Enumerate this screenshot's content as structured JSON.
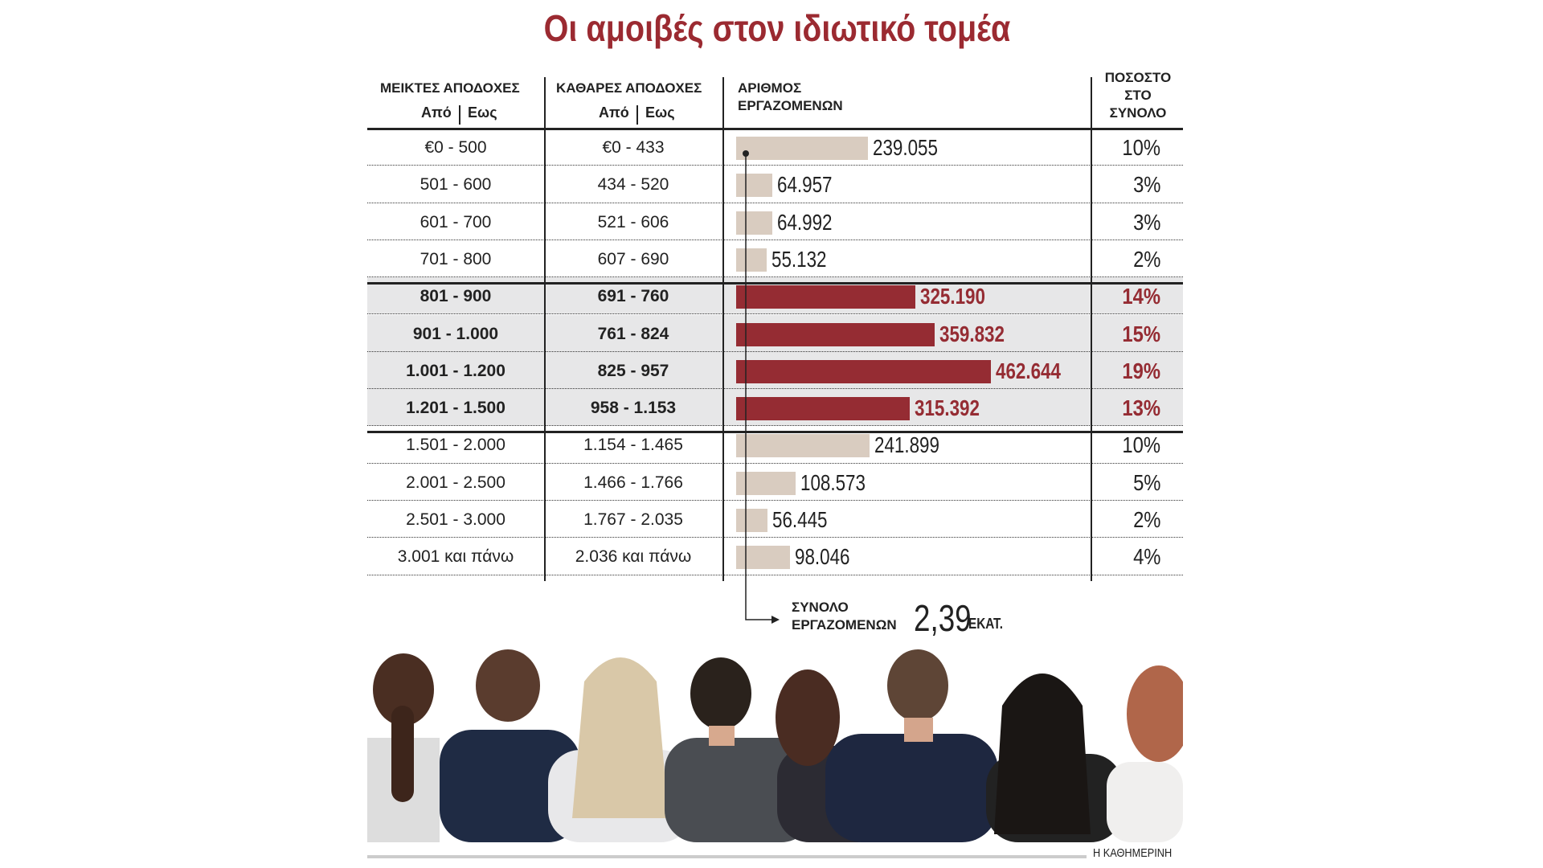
{
  "title": "Οι αμοιβές στον ιδιωτικό τομέα",
  "headers": {
    "gross": "ΜΕΙΚΤΕΣ ΑΠΟΔΟΧΕΣ",
    "net": "ΚΑΘΑΡΕΣ ΑΠΟΔΟΧΕΣ",
    "from": "Από",
    "to": "Εως",
    "workers_1": "ΑΡΙΘΜΟΣ",
    "workers_2": "ΕΡΓΑΖΟΜΕΝΩΝ",
    "pct_1": "ΠΟΣΟΣΤΟ",
    "pct_2": "ΣΤΟ",
    "pct_3": "ΣΥΝΟΛΟ"
  },
  "colors": {
    "highlight": "#952c33",
    "normal": "#d9ccc0",
    "row_highlight_bg": "#e7e7e8",
    "title": "#9b2a31"
  },
  "chart_data": {
    "type": "table",
    "columns": [
      "ΜΕΙΚΤΕΣ ΑΠΟΔΟΧΕΣ",
      "ΚΑΘΑΡΕΣ ΑΠΟΔΟΧΕΣ",
      "ΑΡΙΘΜΟΣ ΕΡΓΑΖΟΜΕΝΩΝ",
      "ΠΟΣΟΣΤΟ ΣΤΟ ΣΥΝΟΛΟ"
    ],
    "rows": [
      {
        "gross": "€0 - 500",
        "net": "€0 - 433",
        "workers": 239055,
        "workers_label": "239.055",
        "pct": "10%",
        "highlight": false
      },
      {
        "gross": "501 - 600",
        "net": "434 - 520",
        "workers": 64957,
        "workers_label": "64.957",
        "pct": "3%",
        "highlight": false
      },
      {
        "gross": "601 - 700",
        "net": "521 - 606",
        "workers": 64992,
        "workers_label": "64.992",
        "pct": "3%",
        "highlight": false
      },
      {
        "gross": "701 - 800",
        "net": "607 - 690",
        "workers": 55132,
        "workers_label": "55.132",
        "pct": "2%",
        "highlight": false
      },
      {
        "gross": "801 - 900",
        "net": "691 - 760",
        "workers": 325190,
        "workers_label": "325.190",
        "pct": "14%",
        "highlight": true
      },
      {
        "gross": "901 - 1.000",
        "net": "761 - 824",
        "workers": 359832,
        "workers_label": "359.832",
        "pct": "15%",
        "highlight": true
      },
      {
        "gross": "1.001 - 1.200",
        "net": "825 - 957",
        "workers": 462644,
        "workers_label": "462.644",
        "pct": "19%",
        "highlight": true
      },
      {
        "gross": "1.201 - 1.500",
        "net": "958 - 1.153",
        "workers": 315392,
        "workers_label": "315.392",
        "pct": "13%",
        "highlight": true
      },
      {
        "gross": "1.501 - 2.000",
        "net": "1.154 - 1.465",
        "workers": 241899,
        "workers_label": "241.899",
        "pct": "10%",
        "highlight": false
      },
      {
        "gross": "2.001 - 2.500",
        "net": "1.466 - 1.766",
        "workers": 108573,
        "workers_label": "108.573",
        "pct": "5%",
        "highlight": false
      },
      {
        "gross": "2.501 - 3.000",
        "net": "1.767 - 2.035",
        "workers": 56445,
        "workers_label": "56.445",
        "pct": "2%",
        "highlight": false
      },
      {
        "gross": "3.001 και πάνω",
        "net": "2.036 και πάνω",
        "workers": 98046,
        "workers_label": "98.046",
        "pct": "4%",
        "highlight": false
      }
    ]
  },
  "total": {
    "label_1": "ΣΥΝΟΛΟ",
    "label_2": "ΕΡΓΑΖΟΜΕΝΩΝ",
    "value": "2,39",
    "unit": "ΕΚΑΤ."
  },
  "footer": "Η ΚΑΘΗΜΕΡΙΝΗ"
}
